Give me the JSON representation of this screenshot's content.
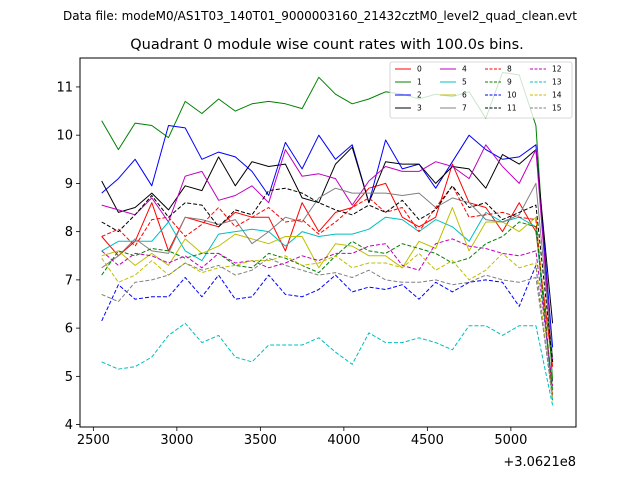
{
  "chart_data": {
    "type": "line",
    "suptitle": "Data file: modeM0/AS1T03_140T01_9000003160_21432cztM0_level2_quad_clean.evt",
    "title": "Quadrant 0 module wise count rates with 100.0s bins.",
    "xlabel": "",
    "ylabel": "",
    "x_offset_label": "+3.0621e8",
    "xlim": [
      2420,
      5390
    ],
    "ylim": [
      3.95,
      11.6
    ],
    "xticks": [
      2500,
      3000,
      3500,
      4000,
      4500,
      5000
    ],
    "xtick_labels": [
      "2500",
      "3000",
      "3500",
      "4000",
      "4500",
      "5000"
    ],
    "yticks": [
      4,
      5,
      6,
      7,
      8,
      9,
      10,
      11
    ],
    "ytick_labels": [
      "4",
      "5",
      "6",
      "7",
      "8",
      "9",
      "10",
      "11"
    ],
    "x": [
      2550,
      2650,
      2750,
      2850,
      2950,
      3050,
      3150,
      3250,
      3350,
      3450,
      3550,
      3650,
      3750,
      3850,
      3950,
      4050,
      4150,
      4250,
      4350,
      4450,
      4550,
      4650,
      4750,
      4850,
      4950,
      5050,
      5150,
      5250
    ],
    "legend_position": "upper right",
    "series": [
      {
        "name": "0",
        "color": "#ff0000",
        "dash": "solid",
        "values": [
          7.9,
          7.5,
          7.8,
          8.6,
          7.6,
          8.3,
          8.2,
          8.1,
          8.4,
          8.3,
          8.3,
          7.6,
          8.6,
          8.0,
          8.4,
          8.5,
          8.9,
          9.0,
          8.3,
          8.1,
          8.3,
          9.4,
          8.6,
          8.5,
          8.0,
          8.6,
          8.0,
          5.2
        ]
      },
      {
        "name": "1",
        "color": "#008000",
        "dash": "solid",
        "values": [
          10.3,
          9.7,
          10.25,
          10.2,
          9.95,
          10.7,
          10.45,
          10.75,
          10.5,
          10.65,
          10.7,
          10.65,
          10.55,
          11.2,
          10.85,
          10.65,
          10.75,
          10.9,
          10.85,
          10.75,
          10.85,
          10.8,
          10.9,
          10.35,
          11.3,
          11.25,
          10.2,
          4.9
        ]
      },
      {
        "name": "2",
        "color": "#0000ff",
        "dash": "solid",
        "values": [
          8.8,
          9.1,
          9.5,
          8.95,
          10.2,
          10.15,
          9.5,
          9.65,
          9.55,
          9.25,
          8.75,
          9.85,
          9.3,
          10.0,
          9.5,
          9.8,
          8.6,
          9.9,
          9.3,
          9.4,
          8.9,
          9.45,
          10.0,
          9.7,
          9.5,
          9.55,
          9.8,
          5.6
        ]
      },
      {
        "name": "3",
        "color": "#000000",
        "dash": "solid",
        "values": [
          9.05,
          8.4,
          8.5,
          8.8,
          8.45,
          8.95,
          8.85,
          9.55,
          8.95,
          9.45,
          9.35,
          9.4,
          8.7,
          8.6,
          9.4,
          9.75,
          8.6,
          9.45,
          9.4,
          9.4,
          9.0,
          9.35,
          9.3,
          8.9,
          9.6,
          9.4,
          9.7,
          6.1
        ]
      },
      {
        "name": "4",
        "color": "#bf00bf",
        "dash": "solid",
        "values": [
          8.55,
          8.45,
          8.35,
          8.7,
          8.2,
          9.15,
          9.25,
          8.65,
          8.75,
          8.95,
          8.6,
          9.7,
          9.15,
          9.2,
          9.1,
          8.55,
          9.05,
          9.35,
          9.25,
          9.25,
          9.45,
          9.35,
          9.1,
          9.8,
          9.35,
          9.0,
          9.7,
          5.3
        ]
      },
      {
        "name": "5",
        "color": "#00bfbf",
        "dash": "solid",
        "values": [
          7.6,
          7.8,
          7.8,
          7.8,
          8.2,
          7.6,
          7.4,
          7.95,
          8.0,
          8.05,
          8.0,
          7.7,
          8.0,
          7.9,
          7.95,
          7.95,
          8.05,
          8.3,
          8.25,
          8.0,
          8.25,
          8.1,
          7.8,
          8.4,
          8.2,
          8.3,
          8.1,
          4.5
        ]
      },
      {
        "name": "6",
        "color": "#bfbf00",
        "dash": "solid",
        "values": [
          7.5,
          7.6,
          7.3,
          7.55,
          7.3,
          7.85,
          7.55,
          7.7,
          7.95,
          7.85,
          7.75,
          7.9,
          7.9,
          7.25,
          7.75,
          7.7,
          7.5,
          7.5,
          7.25,
          7.8,
          7.65,
          8.5,
          7.6,
          8.2,
          8.2,
          8.0,
          8.3,
          4.6
        ]
      },
      {
        "name": "7",
        "color": "#808080",
        "dash": "solid",
        "values": [
          7.25,
          7.5,
          7.85,
          7.6,
          7.55,
          8.3,
          8.25,
          8.15,
          8.25,
          7.75,
          8.0,
          8.3,
          8.2,
          8.7,
          8.9,
          8.8,
          8.8,
          8.8,
          8.75,
          8.8,
          8.5,
          8.7,
          8.6,
          8.25,
          8.2,
          8.35,
          9.0,
          5.4
        ]
      },
      {
        "name": "8",
        "color": "#ff0000",
        "dash": "dashed",
        "values": [
          7.9,
          8.05,
          7.7,
          8.25,
          8.3,
          7.9,
          8.15,
          8.5,
          8.1,
          8.3,
          8.5,
          8.2,
          8.25,
          7.95,
          8.2,
          8.5,
          8.7,
          8.4,
          8.5,
          8.0,
          8.5,
          8.95,
          8.3,
          8.35,
          8.4,
          8.3,
          8.25,
          4.6
        ]
      },
      {
        "name": "9",
        "color": "#008000",
        "dash": "dashed",
        "values": [
          7.1,
          7.6,
          7.5,
          7.65,
          7.6,
          7.45,
          7.55,
          7.55,
          7.3,
          7.25,
          7.55,
          7.45,
          7.3,
          7.15,
          7.5,
          7.8,
          7.6,
          7.55,
          7.75,
          7.65,
          7.55,
          7.35,
          7.45,
          7.75,
          7.9,
          8.2,
          8.1,
          4.7
        ]
      },
      {
        "name": "10",
        "color": "#0000ff",
        "dash": "dashed",
        "values": [
          6.15,
          6.9,
          6.6,
          6.65,
          6.65,
          7.05,
          6.65,
          7.1,
          6.6,
          6.65,
          7.1,
          6.7,
          6.65,
          6.8,
          7.1,
          6.75,
          6.85,
          6.8,
          6.9,
          6.6,
          6.95,
          6.75,
          6.95,
          7.0,
          6.95,
          6.45,
          7.3,
          4.5
        ]
      },
      {
        "name": "11",
        "color": "#000000",
        "dash": "dashed",
        "values": [
          8.2,
          8.0,
          8.35,
          8.75,
          8.3,
          8.6,
          8.55,
          8.1,
          8.45,
          8.35,
          8.85,
          8.9,
          8.8,
          8.6,
          8.45,
          8.35,
          8.55,
          8.4,
          8.65,
          8.25,
          8.45,
          8.95,
          8.5,
          8.6,
          8.25,
          8.4,
          8.55,
          5.3
        ]
      },
      {
        "name": "12",
        "color": "#bf00bf",
        "dash": "dashed",
        "values": [
          7.6,
          7.3,
          7.55,
          7.5,
          7.35,
          7.5,
          7.25,
          7.55,
          7.35,
          7.4,
          7.25,
          7.35,
          7.5,
          7.4,
          7.55,
          7.55,
          7.7,
          7.75,
          7.3,
          7.2,
          7.75,
          7.85,
          7.7,
          7.65,
          7.55,
          7.5,
          7.6,
          4.8
        ]
      },
      {
        "name": "13",
        "color": "#00bfbf",
        "dash": "dashed",
        "values": [
          5.3,
          5.15,
          5.2,
          5.4,
          5.85,
          6.1,
          5.7,
          5.85,
          5.4,
          5.3,
          5.65,
          5.65,
          5.65,
          5.8,
          5.5,
          5.25,
          5.9,
          5.7,
          5.7,
          5.8,
          5.7,
          5.55,
          6.05,
          6.05,
          5.85,
          6.05,
          6.05,
          4.4
        ]
      },
      {
        "name": "14",
        "color": "#bfbf00",
        "dash": "dashed",
        "values": [
          7.45,
          6.95,
          7.1,
          7.4,
          7.1,
          7.35,
          7.15,
          7.25,
          7.3,
          7.4,
          7.4,
          7.5,
          7.3,
          7.35,
          7.5,
          7.25,
          7.35,
          7.35,
          7.25,
          7.55,
          7.2,
          7.4,
          7.0,
          7.2,
          7.55,
          7.25,
          7.35,
          4.5
        ]
      },
      {
        "name": "15",
        "color": "#808080",
        "dash": "dashed",
        "values": [
          6.7,
          6.55,
          6.95,
          7.0,
          7.1,
          7.35,
          7.2,
          7.3,
          7.1,
          7.2,
          7.45,
          7.3,
          7.2,
          7.1,
          7.15,
          7.05,
          7.2,
          7.0,
          6.95,
          6.95,
          7.0,
          6.9,
          6.95,
          7.1,
          7.0,
          6.95,
          7.05,
          4.6
        ]
      }
    ]
  }
}
